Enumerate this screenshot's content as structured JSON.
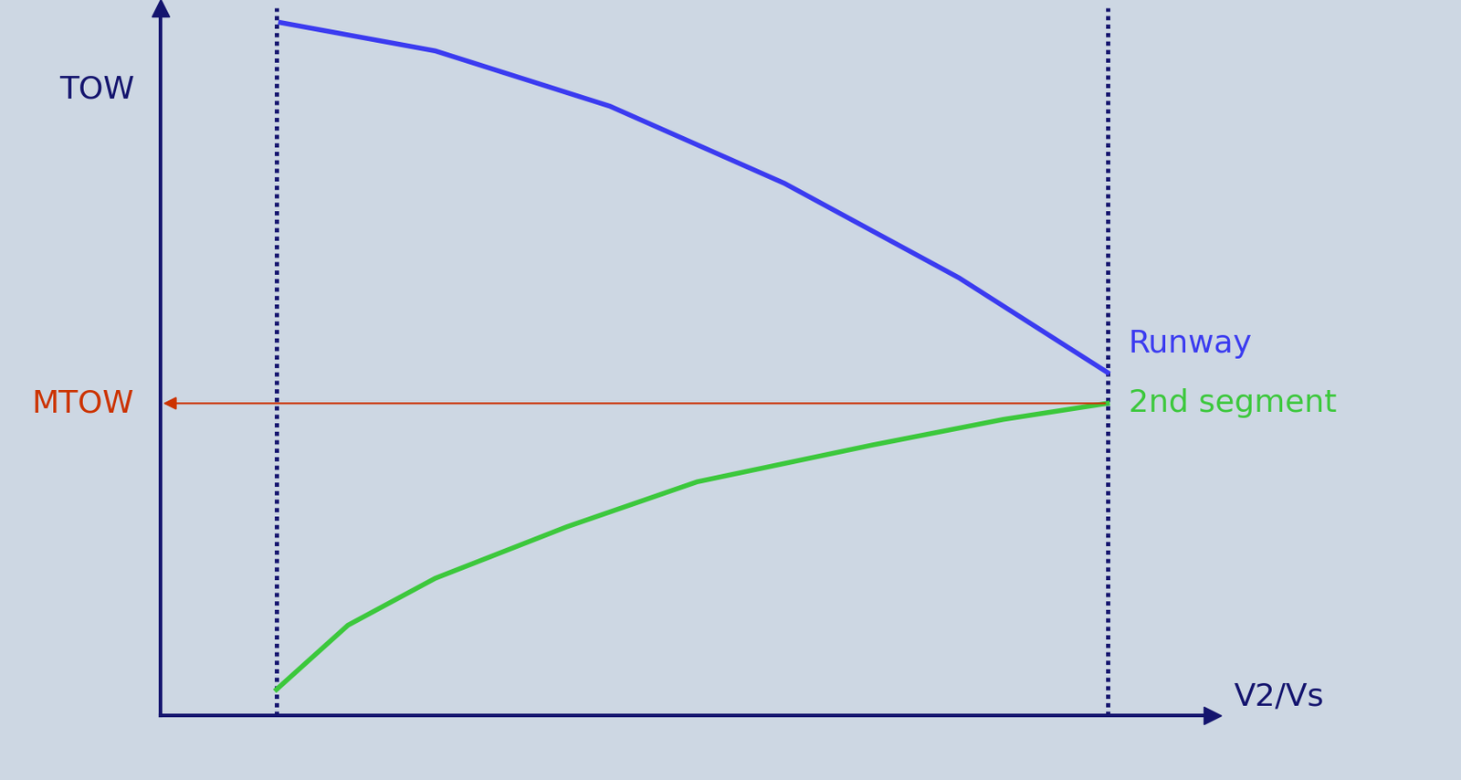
{
  "chart_data": {
    "type": "line",
    "x_label": "V2/Vs",
    "y_label": "TOW",
    "xlim": [
      0,
      100
    ],
    "ylim": [
      0,
      110
    ],
    "xticks": [],
    "yticks": [],
    "tick_labels": false,
    "grid": false,
    "vlines": [
      11,
      90
    ],
    "series": [
      {
        "name": "Runway",
        "color": "#3b3bf0",
        "line_style": "solid",
        "x": [
          11.4,
          26.1,
          42.7,
          59.3,
          75.9,
          90
        ],
        "values": [
          107.7,
          103.3,
          94.7,
          82.7,
          68,
          53.3
        ]
      },
      {
        "name": "2nd segment",
        "color": "#3cc83c",
        "line_style": "solid",
        "x": [
          11,
          17.8,
          26.1,
          38.6,
          51,
          67.6,
          80.1,
          90
        ],
        "values": [
          4,
          14,
          21.3,
          29.3,
          36.3,
          42,
          46,
          48.5
        ]
      }
    ],
    "annotations": [
      {
        "text": "MTOW",
        "color": "#cc3300",
        "x": 90,
        "y": 48.5
      }
    ]
  }
}
